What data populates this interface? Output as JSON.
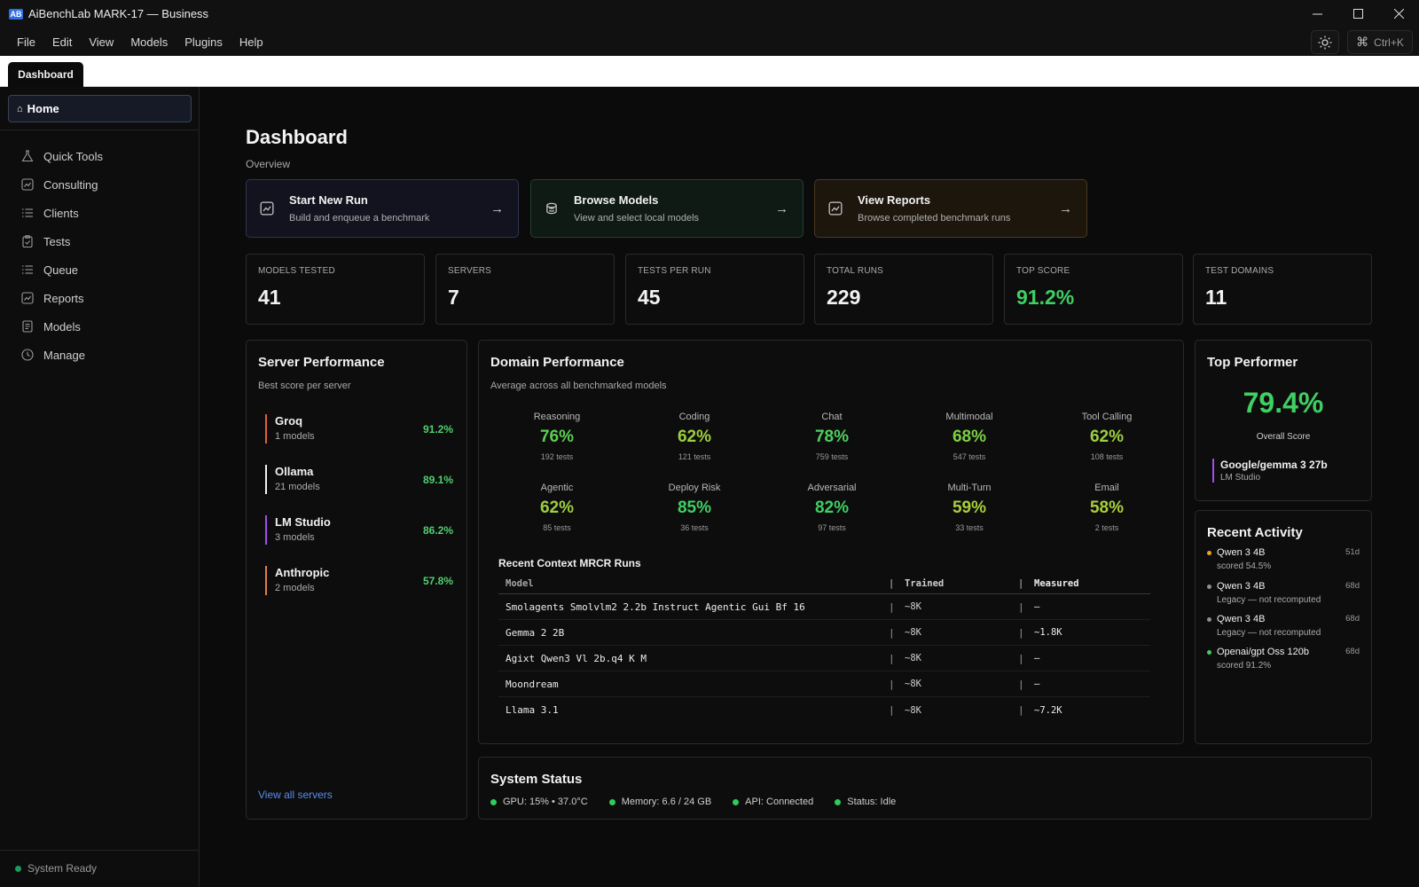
{
  "window": {
    "logo": "AB",
    "title": "AiBenchLab MARK-17 — Business"
  },
  "menu": [
    "File",
    "Edit",
    "View",
    "Models",
    "Plugins",
    "Help"
  ],
  "shortcut": "Ctrl+K",
  "tab": "Dashboard",
  "sidebar": {
    "home": "Home",
    "items": [
      {
        "label": "Quick Tools",
        "icon": "flask-icon"
      },
      {
        "label": "Consulting",
        "icon": "chart-icon"
      },
      {
        "label": "Clients",
        "icon": "list-icon"
      },
      {
        "label": "Tests",
        "icon": "clipboard-icon"
      },
      {
        "label": "Queue",
        "icon": "list-icon"
      },
      {
        "label": "Reports",
        "icon": "chart-icon"
      },
      {
        "label": "Models",
        "icon": "book-icon"
      },
      {
        "label": "Manage",
        "icon": "clock-icon"
      }
    ],
    "status": "System Ready"
  },
  "page": {
    "title": "Dashboard",
    "subtitle": "Overview"
  },
  "actions": [
    {
      "title": "Start New Run",
      "desc": "Build and enqueue a benchmark"
    },
    {
      "title": "Browse Models",
      "desc": "View and select local models"
    },
    {
      "title": "View Reports",
      "desc": "Browse completed benchmark runs"
    }
  ],
  "stats": [
    {
      "label": "MODELS TESTED",
      "value": "41"
    },
    {
      "label": "SERVERS",
      "value": "7"
    },
    {
      "label": "TESTS PER RUN",
      "value": "45"
    },
    {
      "label": "TOTAL RUNS",
      "value": "229"
    },
    {
      "label": "TOP SCORE",
      "value": "91.2%"
    },
    {
      "label": "TEST DOMAINS",
      "value": "11"
    }
  ],
  "server_performance": {
    "title": "Server Performance",
    "subtitle": "Best score per server",
    "servers": [
      {
        "name": "Groq",
        "count": "1 models",
        "score": "91.2%",
        "color": "#e0603a"
      },
      {
        "name": "Ollama",
        "count": "21 models",
        "score": "89.1%",
        "color": "#f2f2f2"
      },
      {
        "name": "LM Studio",
        "count": "3 models",
        "score": "86.2%",
        "color": "#a24df0"
      },
      {
        "name": "Anthropic",
        "count": "2 models",
        "score": "57.8%",
        "color": "#e0804a"
      }
    ],
    "view_all": "View all servers"
  },
  "domain_performance": {
    "title": "Domain Performance",
    "subtitle": "Average across all benchmarked models",
    "domains": [
      {
        "name": "Reasoning",
        "value": "76%",
        "tests": "192 tests",
        "color": "#5ccf4f"
      },
      {
        "name": "Coding",
        "value": "62%",
        "tests": "121 tests",
        "color": "#9ccf3f"
      },
      {
        "name": "Chat",
        "value": "78%",
        "tests": "759 tests",
        "color": "#4fcf5f"
      },
      {
        "name": "Multimodal",
        "value": "68%",
        "tests": "547 tests",
        "color": "#7ccf45"
      },
      {
        "name": "Tool Calling",
        "value": "62%",
        "tests": "108 tests",
        "color": "#9ccf3f"
      },
      {
        "name": "Agentic",
        "value": "62%",
        "tests": "85 tests",
        "color": "#9ccf3f"
      },
      {
        "name": "Deploy Risk",
        "value": "85%",
        "tests": "36 tests",
        "color": "#3fcf62"
      },
      {
        "name": "Adversarial",
        "value": "82%",
        "tests": "97 tests",
        "color": "#3fcf62"
      },
      {
        "name": "Multi-Turn",
        "value": "59%",
        "tests": "33 tests",
        "color": "#a8cf3a"
      },
      {
        "name": "Email",
        "value": "58%",
        "tests": "2 tests",
        "color": "#a8cf3a"
      }
    ],
    "mrcr": {
      "title": "Recent Context MRCR Runs",
      "headers": [
        "Model",
        "Trained",
        "Measured"
      ],
      "rows": [
        [
          "Smolagents Smolvlm2 2.2b Instruct Agentic Gui Bf 16",
          "~8K",
          "—"
        ],
        [
          "Gemma 2 2B",
          "~8K",
          "~1.8K"
        ],
        [
          "Agixt Qwen3 Vl 2b.q4 K M",
          "~8K",
          "—"
        ],
        [
          "Moondream",
          "~8K",
          "—"
        ],
        [
          "Llama 3.1",
          "~8K",
          "~7.2K"
        ]
      ]
    }
  },
  "top_performer": {
    "title": "Top Performer",
    "score": "79.4%",
    "score_label": "Overall Score",
    "model": "Google/gemma 3 27b",
    "source": "LM Studio"
  },
  "recent_activity": {
    "title": "Recent Activity",
    "items": [
      {
        "name": "Qwen 3 4B",
        "desc": "scored 54.5%",
        "time": "51d",
        "color": "#f0a020"
      },
      {
        "name": "Qwen 3 4B",
        "desc": "Legacy — not recomputed",
        "time": "68d",
        "color": "#8a8f9a"
      },
      {
        "name": "Qwen 3 4B",
        "desc": "Legacy — not recomputed",
        "time": "68d",
        "color": "#8a8f9a"
      },
      {
        "name": "Openai/gpt Oss 120b",
        "desc": "scored 91.2%",
        "time": "68d",
        "color": "#3fcf62"
      }
    ]
  },
  "system_status": {
    "title": "System Status",
    "items": [
      "GPU: 15% • 37.0°C",
      "Memory: 6.6 / 24 GB",
      "API: Connected",
      "Status: Idle"
    ]
  }
}
